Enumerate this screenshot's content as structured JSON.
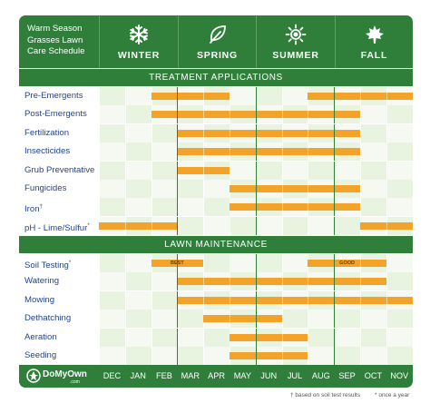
{
  "header": {
    "title_lines": [
      "Warm Season",
      "Grasses Lawn",
      "Care Schedule"
    ],
    "seasons": [
      {
        "label": "WINTER",
        "icon": "snowflake-icon"
      },
      {
        "label": "SPRING",
        "icon": "leaf-icon"
      },
      {
        "label": "SUMMER",
        "icon": "sun-icon"
      },
      {
        "label": "FALL",
        "icon": "maple-leaf-icon"
      }
    ]
  },
  "sections": {
    "treatment": "TREATMENT APPLICATIONS",
    "maintenance": "LAWN MAINTENANCE"
  },
  "treatment_rows": [
    {
      "name": "Pre-Emergents",
      "ranges": [
        [
          2,
          5
        ],
        [
          8,
          12
        ]
      ]
    },
    {
      "name": "Post-Emergents",
      "ranges": [
        [
          2,
          10
        ]
      ]
    },
    {
      "name": "Fertilization",
      "ranges": [
        [
          3,
          10
        ]
      ]
    },
    {
      "name": "Insecticides",
      "ranges": [
        [
          3,
          10
        ]
      ]
    },
    {
      "name": "Grub Preventative",
      "ranges": [
        [
          3,
          5
        ]
      ]
    },
    {
      "name": "Fungicides",
      "ranges": [
        [
          5,
          10
        ]
      ]
    },
    {
      "name": "Iron",
      "mark": "†",
      "ranges": [
        [
          5,
          10
        ]
      ]
    },
    {
      "name": "pH - Lime/Sulfur",
      "mark": "*",
      "ranges": [
        [
          0,
          3
        ],
        [
          10,
          12
        ]
      ]
    }
  ],
  "maintenance_rows": [
    {
      "name": "Soil Testing",
      "mark": "*",
      "ranges": [
        [
          2,
          4
        ],
        [
          8,
          11
        ]
      ],
      "labels": [
        "BEST",
        "GOOD"
      ]
    },
    {
      "name": "Watering",
      "ranges": [
        [
          3,
          11
        ]
      ]
    },
    {
      "name": "Mowing",
      "ranges": [
        [
          3,
          12
        ]
      ]
    },
    {
      "name": "Dethatching",
      "ranges": [
        [
          4,
          7
        ]
      ]
    },
    {
      "name": "Aeration",
      "ranges": [
        [
          5,
          8
        ]
      ]
    },
    {
      "name": "Seeding",
      "ranges": [
        [
          5,
          8
        ]
      ]
    }
  ],
  "footer": {
    "logo": "DoMyOwn",
    "logo_sub": ".com",
    "months": [
      "DEC",
      "JAN",
      "FEB",
      "MAR",
      "APR",
      "MAY",
      "JUN",
      "JUL",
      "AUG",
      "SEP",
      "OCT",
      "NOV"
    ]
  },
  "footnotes": {
    "dagger": "† based on soil test results",
    "star": "* once a year"
  },
  "colors": {
    "header_green": "#2f7f3b",
    "bar_orange": "#f3a22a",
    "label_blue": "#26458a",
    "cell_light": "#eaf4e2"
  }
}
